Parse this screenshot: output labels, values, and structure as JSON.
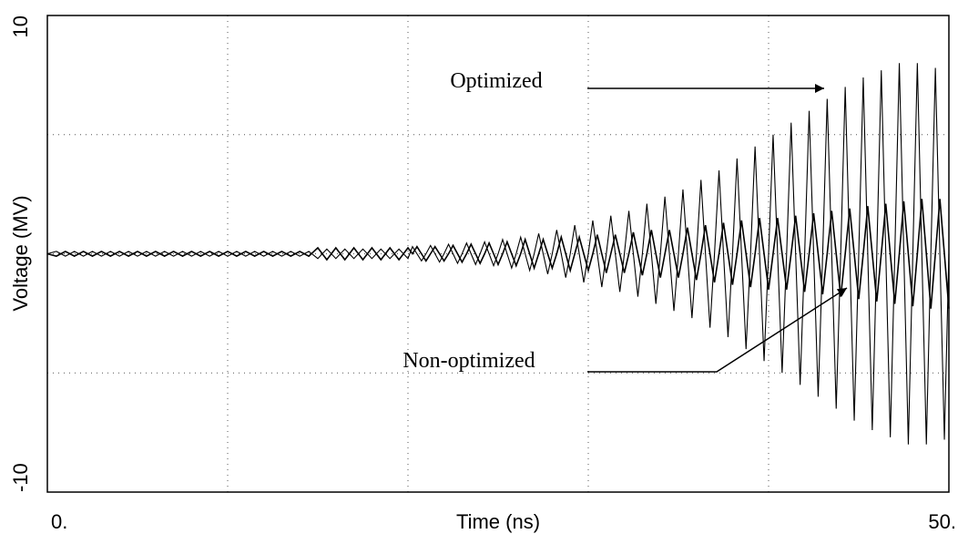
{
  "chart_data": {
    "type": "line",
    "x_label": "Time (ns)",
    "y_label": "Voltage (MV)",
    "xlim": [
      0,
      50
    ],
    "ylim": [
      -10,
      10
    ],
    "xticks": [
      {
        "value": 0,
        "label": "0."
      },
      {
        "value": 50,
        "label": "50."
      }
    ],
    "yticks": [
      -10,
      10
    ],
    "xgrid": [
      10,
      20,
      30,
      40
    ],
    "ygrid": [
      -5,
      0,
      5
    ],
    "grid": true,
    "annotations": [
      "Optimized",
      "Non-optimized"
    ],
    "x": [
      0,
      0.5,
      1,
      1.5,
      2,
      2.5,
      3,
      3.5,
      4,
      4.5,
      5,
      5.5,
      6,
      6.5,
      7,
      7.5,
      8,
      8.5,
      9,
      9.5,
      10,
      10.5,
      11,
      11.5,
      12,
      12.5,
      13,
      13.5,
      14,
      14.5,
      15,
      15.5,
      16,
      16.5,
      17,
      17.5,
      18,
      18.5,
      19,
      19.5,
      20,
      20.25,
      20.5,
      20.75,
      21,
      21.25,
      21.5,
      21.75,
      22,
      22.25,
      22.5,
      22.75,
      23,
      23.25,
      23.5,
      23.75,
      24,
      24.25,
      24.5,
      24.75,
      25,
      25.25,
      25.5,
      25.75,
      26,
      26.25,
      26.5,
      26.75,
      27,
      27.25,
      27.5,
      27.75,
      28,
      28.25,
      28.5,
      28.75,
      29,
      29.25,
      29.5,
      29.75,
      30,
      30.25,
      30.5,
      30.75,
      31,
      31.25,
      31.5,
      31.75,
      32,
      32.25,
      32.5,
      32.75,
      33,
      33.25,
      33.5,
      33.75,
      34,
      34.25,
      34.5,
      34.75,
      35,
      35.25,
      35.5,
      35.75,
      36,
      36.25,
      36.5,
      36.75,
      37,
      37.25,
      37.5,
      37.75,
      38,
      38.25,
      38.5,
      38.75,
      39,
      39.25,
      39.5,
      39.75,
      40,
      40.25,
      40.5,
      40.75,
      41,
      41.25,
      41.5,
      41.75,
      42,
      42.25,
      42.5,
      42.75,
      43,
      43.25,
      43.5,
      43.75,
      44,
      44.25,
      44.5,
      44.75,
      45,
      45.25,
      45.5,
      45.75,
      46,
      46.25,
      46.5,
      46.75,
      47,
      47.25,
      47.5,
      47.75,
      48,
      48.25,
      48.5,
      48.75,
      49,
      49.25,
      49.5,
      49.75,
      50
    ],
    "series": [
      {
        "name": "Optimized",
        "color": "#000000",
        "values": [
          0,
          0.1,
          -0.1,
          0.1,
          -0.1,
          0.1,
          -0.1,
          0.1,
          -0.1,
          0.1,
          -0.1,
          0.1,
          -0.1,
          0.1,
          -0.1,
          0.1,
          -0.1,
          0.1,
          -0.1,
          0.1,
          -0.1,
          0.1,
          -0.1,
          0.1,
          -0.1,
          0.1,
          -0.1,
          0.1,
          -0.1,
          0.1,
          -0.2,
          0.2,
          -0.2,
          0.2,
          -0.2,
          0.2,
          -0.2,
          0.2,
          -0.2,
          0.2,
          -0.2,
          0.3,
          0,
          -0.3,
          0,
          0.35,
          0,
          -0.35,
          0,
          0.4,
          0,
          -0.4,
          0,
          0.45,
          0,
          -0.45,
          0,
          0.5,
          0,
          -0.5,
          0,
          0.6,
          0,
          -0.6,
          0,
          0.7,
          0,
          -0.7,
          0,
          0.85,
          0,
          -0.85,
          0,
          1.0,
          0,
          -1.0,
          0,
          1.2,
          0,
          -1.2,
          0,
          1.4,
          0,
          -1.4,
          0,
          1.6,
          0,
          -1.6,
          0,
          1.8,
          0,
          -1.8,
          0,
          2.1,
          0,
          -2.1,
          0,
          2.4,
          0,
          -2.4,
          0,
          2.7,
          0,
          -2.7,
          0,
          3.1,
          0,
          -3.1,
          0,
          3.5,
          0,
          -3.5,
          0,
          4.0,
          0,
          -4.0,
          0,
          4.5,
          0,
          -4.5,
          0,
          5.0,
          0,
          -5.0,
          0,
          5.5,
          0,
          -5.5,
          0,
          6.0,
          0,
          -6.0,
          0,
          6.5,
          0,
          -6.5,
          0,
          7.0,
          0,
          -7.0,
          0,
          7.4,
          0,
          -7.4,
          0,
          7.7,
          0,
          -7.7,
          0,
          8.0,
          0,
          -8.0,
          0,
          8.0,
          0,
          -8.0,
          0,
          7.8,
          0,
          -7.8,
          0
        ]
      },
      {
        "name": "Non-optimized",
        "color": "#000000",
        "values": [
          0,
          -0.1,
          0.1,
          -0.1,
          0.1,
          -0.1,
          0.1,
          -0.1,
          0.1,
          -0.1,
          0.1,
          -0.1,
          0.1,
          -0.1,
          0.1,
          -0.1,
          0.1,
          -0.1,
          0.1,
          -0.1,
          0.1,
          -0.1,
          0.1,
          -0.1,
          0.1,
          -0.1,
          0.1,
          -0.1,
          0.1,
          -0.1,
          0.25,
          -0.25,
          0.25,
          -0.25,
          0.25,
          -0.25,
          0.25,
          -0.25,
          0.25,
          -0.25,
          0.25,
          0,
          0.3,
          0,
          -0.3,
          0,
          0.3,
          0,
          -0.3,
          0,
          0.35,
          0,
          -0.35,
          0,
          0.4,
          0,
          -0.4,
          0,
          0.45,
          0,
          -0.45,
          0,
          0.5,
          0,
          -0.5,
          0,
          0.6,
          0,
          -0.6,
          0,
          0.6,
          0,
          -0.6,
          0,
          0.7,
          0,
          -0.7,
          0,
          0.7,
          0,
          -0.7,
          0,
          0.8,
          0,
          -0.8,
          0,
          0.8,
          0,
          -0.8,
          0,
          0.9,
          0,
          -0.9,
          0,
          1.0,
          0,
          -1.0,
          0,
          1.0,
          0,
          -1.0,
          0,
          1.1,
          0,
          -1.1,
          0,
          1.2,
          0,
          -1.2,
          0,
          1.3,
          0,
          -1.3,
          0,
          1.4,
          0,
          -1.4,
          0,
          1.5,
          0,
          -1.5,
          0,
          1.5,
          0,
          -1.5,
          0,
          1.6,
          0,
          -1.6,
          0,
          1.7,
          0,
          -1.7,
          0,
          1.8,
          0,
          -1.8,
          0,
          1.9,
          0,
          -1.9,
          0,
          2.0,
          0,
          -2.0,
          0,
          2.1,
          0,
          -2.1,
          0,
          2.2,
          0,
          -2.2,
          0,
          2.3,
          0,
          -2.3,
          0,
          2.3,
          0,
          -2.3
        ]
      }
    ]
  }
}
